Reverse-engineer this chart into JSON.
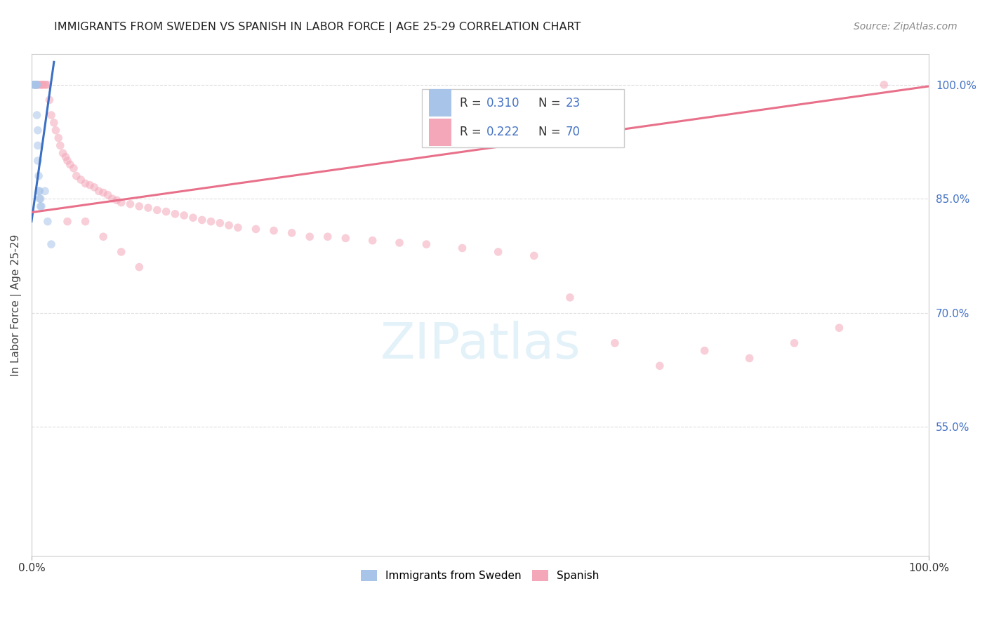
{
  "title": "IMMIGRANTS FROM SWEDEN VS SPANISH IN LABOR FORCE | AGE 25-29 CORRELATION CHART",
  "source": "Source: ZipAtlas.com",
  "ylabel": "In Labor Force | Age 25-29",
  "xlim": [
    0.0,
    1.0
  ],
  "ylim": [
    0.38,
    1.04
  ],
  "ytick_positions": [
    0.55,
    0.7,
    0.85,
    1.0
  ],
  "ytick_labels": [
    "55.0%",
    "70.0%",
    "85.0%",
    "100.0%"
  ],
  "legend_R_sweden": "R = 0.310",
  "legend_N_sweden": "N = 23",
  "legend_R_spanish": "R = 0.222",
  "legend_N_spanish": "N = 70",
  "sweden_color": "#a8c4e8",
  "spanish_color": "#f4a7b9",
  "sweden_line_color": "#3a6fc4",
  "spanish_line_color": "#e8708a",
  "sweden_scatter_x": [
    0.002,
    0.003,
    0.003,
    0.004,
    0.004,
    0.005,
    0.005,
    0.006,
    0.006,
    0.006,
    0.007,
    0.007,
    0.007,
    0.008,
    0.008,
    0.009,
    0.009,
    0.01,
    0.01,
    0.011,
    0.015,
    0.018,
    0.022
  ],
  "sweden_scatter_y": [
    1.0,
    1.0,
    1.0,
    1.0,
    1.0,
    1.0,
    1.0,
    1.0,
    1.0,
    0.96,
    0.94,
    0.92,
    0.9,
    0.88,
    0.86,
    0.86,
    0.85,
    0.85,
    0.84,
    0.84,
    0.86,
    0.82,
    0.79
  ],
  "swedish_line_x0": 0.0,
  "swedish_line_y0": 0.82,
  "swedish_line_x1": 0.025,
  "swedish_line_y1": 1.03,
  "spanish_line_x0": 0.0,
  "spanish_line_y0": 0.832,
  "spanish_line_x1": 1.0,
  "spanish_line_y1": 0.998,
  "spanish_scatter_x": [
    0.005,
    0.007,
    0.008,
    0.01,
    0.011,
    0.012,
    0.013,
    0.015,
    0.016,
    0.018,
    0.02,
    0.022,
    0.025,
    0.027,
    0.03,
    0.032,
    0.035,
    0.038,
    0.04,
    0.043,
    0.047,
    0.05,
    0.055,
    0.06,
    0.065,
    0.07,
    0.075,
    0.08,
    0.085,
    0.09,
    0.095,
    0.1,
    0.11,
    0.12,
    0.13,
    0.14,
    0.15,
    0.16,
    0.17,
    0.18,
    0.19,
    0.2,
    0.21,
    0.22,
    0.23,
    0.25,
    0.27,
    0.29,
    0.31,
    0.33,
    0.35,
    0.38,
    0.41,
    0.44,
    0.48,
    0.52,
    0.56,
    0.6,
    0.65,
    0.7,
    0.75,
    0.8,
    0.85,
    0.9,
    0.95,
    0.04,
    0.06,
    0.08,
    0.1,
    0.12
  ],
  "spanish_scatter_y": [
    1.0,
    1.0,
    1.0,
    1.0,
    1.0,
    1.0,
    1.0,
    1.0,
    1.0,
    1.0,
    0.98,
    0.96,
    0.95,
    0.94,
    0.93,
    0.92,
    0.91,
    0.905,
    0.9,
    0.895,
    0.89,
    0.88,
    0.875,
    0.87,
    0.868,
    0.865,
    0.86,
    0.858,
    0.855,
    0.85,
    0.848,
    0.845,
    0.843,
    0.84,
    0.838,
    0.835,
    0.833,
    0.83,
    0.828,
    0.825,
    0.822,
    0.82,
    0.818,
    0.815,
    0.812,
    0.81,
    0.808,
    0.805,
    0.8,
    0.8,
    0.798,
    0.795,
    0.792,
    0.79,
    0.785,
    0.78,
    0.775,
    0.72,
    0.66,
    0.63,
    0.65,
    0.64,
    0.66,
    0.68,
    1.0,
    0.82,
    0.82,
    0.8,
    0.78,
    0.76
  ],
  "background_color": "#ffffff",
  "grid_color": "#dddddd",
  "marker_size": 70,
  "marker_alpha": 0.55
}
